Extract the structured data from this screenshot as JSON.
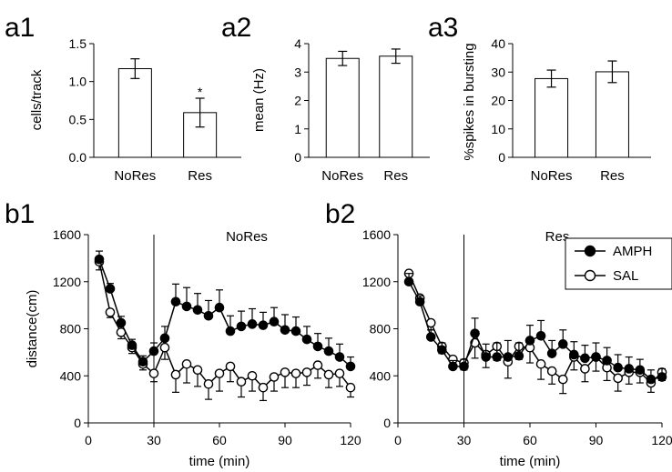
{
  "chart_data": [
    {
      "id": "a1",
      "panel_label": "a1",
      "type": "bar",
      "categories": [
        "NoRes",
        "Res"
      ],
      "values": [
        1.17,
        0.59
      ],
      "errors": [
        0.13,
        0.19
      ],
      "annotations": [
        "",
        "*"
      ],
      "ylabel": "cells/track",
      "ylim": [
        0,
        1.5
      ],
      "yticks": [
        "0.0",
        "0.5",
        "1.0",
        "1.5"
      ],
      "bar_color": "#ffffff",
      "grid": false
    },
    {
      "id": "a2",
      "panel_label": "a2",
      "type": "bar",
      "categories": [
        "NoRes",
        "Res"
      ],
      "values": [
        3.48,
        3.56
      ],
      "errors": [
        0.25,
        0.25
      ],
      "annotations": [
        "",
        ""
      ],
      "ylabel": "mean (Hz)",
      "ylim": [
        0,
        4
      ],
      "yticks": [
        "0",
        "1",
        "2",
        "3",
        "4"
      ],
      "bar_color": "#ffffff",
      "grid": false
    },
    {
      "id": "a3",
      "panel_label": "a3",
      "type": "bar",
      "categories": [
        "NoRes",
        "Res"
      ],
      "values": [
        27.7,
        30.1
      ],
      "errors": [
        3.0,
        3.8
      ],
      "annotations": [
        "",
        ""
      ],
      "ylabel": "%spikes in bursting",
      "ylim": [
        0,
        40
      ],
      "yticks": [
        "0",
        "10",
        "20",
        "30",
        "40"
      ],
      "bar_color": "#ffffff",
      "grid": false
    },
    {
      "id": "b1",
      "panel_label": "b1",
      "type": "line",
      "title": "NoRes",
      "xlabel": "time (min)",
      "ylabel": "distance(cm)",
      "xlim": [
        0,
        120
      ],
      "ylim": [
        0,
        1600
      ],
      "xticks": [
        "0",
        "30",
        "60",
        "90",
        "120"
      ],
      "yticks": [
        "0",
        "400",
        "800",
        "1200",
        "1600"
      ],
      "vline_x": 30,
      "x": [
        5,
        10,
        15,
        20,
        25,
        30,
        35,
        40,
        45,
        50,
        55,
        60,
        65,
        70,
        75,
        80,
        85,
        90,
        95,
        100,
        105,
        110,
        115,
        120
      ],
      "series": [
        {
          "name": "AMPH",
          "marker": "filled",
          "values": [
            1390,
            1140,
            850,
            660,
            520,
            610,
            720,
            1030,
            990,
            960,
            910,
            980,
            780,
            820,
            840,
            830,
            860,
            790,
            780,
            710,
            650,
            610,
            560,
            480
          ],
          "errors": [
            70,
            45,
            55,
            50,
            50,
            70,
            100,
            150,
            160,
            140,
            130,
            150,
            130,
            130,
            130,
            110,
            120,
            130,
            120,
            110,
            110,
            110,
            110,
            80
          ]
        },
        {
          "name": "SAL",
          "marker": "open",
          "values": [
            1370,
            940,
            770,
            640,
            500,
            420,
            640,
            410,
            500,
            450,
            330,
            420,
            480,
            350,
            400,
            300,
            390,
            430,
            420,
            430,
            490,
            410,
            420,
            300
          ]
        }
      ]
    },
    {
      "id": "b2",
      "panel_label": "b2",
      "type": "line",
      "title": "Res",
      "xlabel": "time (min)",
      "ylabel": "",
      "xlim": [
        0,
        120
      ],
      "ylim": [
        0,
        1600
      ],
      "xticks": [
        "0",
        "30",
        "60",
        "90",
        "120"
      ],
      "yticks": [
        "0",
        "400",
        "800",
        "1200",
        "1600"
      ],
      "vline_x": 30,
      "legend": {
        "position": "top-right",
        "entries": [
          "AMPH",
          "SAL"
        ]
      },
      "x": [
        5,
        10,
        15,
        20,
        25,
        30,
        35,
        40,
        45,
        50,
        55,
        60,
        65,
        70,
        75,
        80,
        85,
        90,
        95,
        100,
        105,
        110,
        115,
        120
      ],
      "series": [
        {
          "name": "AMPH",
          "marker": "filled",
          "values": [
            1200,
            1030,
            730,
            620,
            480,
            480,
            760,
            560,
            560,
            560,
            570,
            700,
            740,
            590,
            670,
            580,
            550,
            560,
            530,
            470,
            460,
            450,
            370,
            390
          ],
          "errors": [
            70,
            50,
            60,
            60,
            50,
            60,
            130,
            110,
            120,
            140,
            110,
            130,
            130,
            110,
            120,
            110,
            110,
            120,
            110,
            110,
            100,
            90,
            80,
            70
          ]
        },
        {
          "name": "SAL",
          "marker": "open",
          "values": [
            1270,
            1060,
            850,
            650,
            540,
            510,
            680,
            580,
            650,
            520,
            650,
            640,
            500,
            440,
            370,
            560,
            460,
            560,
            470,
            380,
            430,
            430,
            340,
            430
          ]
        }
      ]
    }
  ]
}
